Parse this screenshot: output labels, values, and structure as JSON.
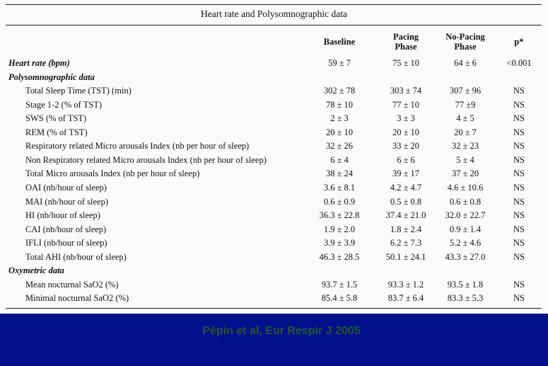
{
  "title": "Heart rate and Polysomnographic data",
  "headers": {
    "baseline": "Baseline",
    "pacing": [
      "Pacing",
      "Phase"
    ],
    "nopacing": [
      "No-Pacing",
      "Phase"
    ],
    "p": "p*"
  },
  "rows": [
    {
      "type": "section",
      "label": "Heart rate (bpm)",
      "baseline": "59 ± 7",
      "pacing": "75 ± 10",
      "nopacing": "64 ± 6",
      "p": "<0.001"
    },
    {
      "type": "section",
      "label": "Polysomnographic data",
      "baseline": "",
      "pacing": "",
      "nopacing": "",
      "p": ""
    },
    {
      "type": "data",
      "label": "Total Sleep Time (TST) (min)",
      "baseline": "302 ± 78",
      "pacing": "303 ± 74",
      "nopacing": "307 ± 96",
      "p": "NS"
    },
    {
      "type": "data",
      "label": "Stage 1-2 (% of TST)",
      "baseline": "78 ± 10",
      "pacing": "77 ± 10",
      "nopacing": "77 ±9",
      "p": "NS"
    },
    {
      "type": "data",
      "label": "SWS (% of TST)",
      "baseline": "2 ± 3",
      "pacing": "3 ± 3",
      "nopacing": "4 ± 5",
      "p": "NS"
    },
    {
      "type": "data",
      "label": "REM (% of TST)",
      "baseline": "20 ± 10",
      "pacing": "20 ± 10",
      "nopacing": "20 ± 7",
      "p": "NS"
    },
    {
      "type": "data",
      "label": "Respiratory related Micro arousals Index (nb per hour of sleep)",
      "baseline": "32 ± 26",
      "pacing": "33 ± 20",
      "nopacing": "32 ± 23",
      "p": "NS"
    },
    {
      "type": "data",
      "label": "Non Respiratory related Micro arousals Index (nb per hour of sleep)",
      "baseline": "6 ± 4",
      "pacing": "6 ± 6",
      "nopacing": "5 ± 4",
      "p": "NS"
    },
    {
      "type": "data",
      "label": "Total Micro arousals Index (nb per hour of sleep)",
      "baseline": "38 ± 24",
      "pacing": "39 ± 17",
      "nopacing": "37 ± 20",
      "p": "NS"
    },
    {
      "type": "data",
      "label": "OAI (nb/hour of sleep)",
      "baseline": "3.6 ± 8.1",
      "pacing": "4.2 ± 4.7",
      "nopacing": "4.6 ± 10.6",
      "p": "NS"
    },
    {
      "type": "data",
      "label": "MAI (nb/hour of sleep)",
      "baseline": "0.6 ± 0.9",
      "pacing": "0.5 ± 0.8",
      "nopacing": "0.6 ± 0.8",
      "p": "NS"
    },
    {
      "type": "data",
      "label": "HI (nb/hour of sleep)",
      "baseline": "36.3 ± 22.8",
      "pacing": "37.4 ± 21.0",
      "nopacing": "32.0 ± 22.7",
      "p": "NS"
    },
    {
      "type": "data",
      "label": "CAI (nb/hour of sleep)",
      "baseline": "1.9 ± 2.0",
      "pacing": "1.8 ± 2.4",
      "nopacing": "0.9 ± 1.4",
      "p": "NS"
    },
    {
      "type": "data",
      "label": "IFLI (nb/hour of sleep)",
      "baseline": "3.9 ± 3.9",
      "pacing": "6.2 ± 7.3",
      "nopacing": "5.2 ± 4.6",
      "p": "NS"
    },
    {
      "type": "data",
      "label": "Total AHI (nb/hour of sleep)",
      "baseline": "46.3 ± 28.5",
      "pacing": "50.1 ± 24.1",
      "nopacing": "43.3 ± 27.0",
      "p": "NS"
    },
    {
      "type": "section",
      "label": "Oxymetric data",
      "baseline": "",
      "pacing": "",
      "nopacing": "",
      "p": ""
    },
    {
      "type": "data",
      "label": "Mean nocturnal SaO2 (%)",
      "baseline": "93.7 ± 1.5",
      "pacing": "93.3 ± 1.2",
      "nopacing": "93.5 ± 1.8",
      "p": "NS"
    },
    {
      "type": "data",
      "label": "Minimal nocturnal SaO2 (%)",
      "baseline": "85.4 ± 5.8",
      "pacing": "83.7 ± 6.4",
      "nopacing": "83.3 ± 5.3",
      "p": "NS"
    }
  ],
  "footer": {
    "citation": "Pépin et al, Eur Respir J 2005",
    "background_color": "#01108a",
    "citation_color": "#1f5a36"
  }
}
